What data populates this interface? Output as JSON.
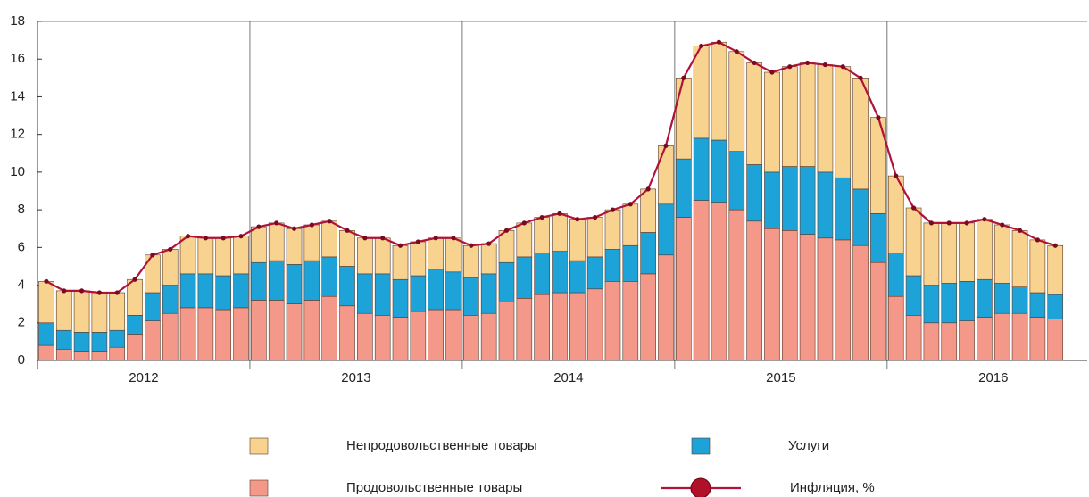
{
  "chart_data": {
    "type": "bar",
    "stacked": true,
    "categories": [
      null,
      null,
      null,
      null,
      null,
      null,
      null,
      null,
      null,
      null,
      null,
      null,
      null,
      null,
      null,
      null,
      null,
      null,
      null,
      null,
      null,
      null,
      null,
      null,
      null,
      null,
      null,
      null,
      null,
      null,
      null,
      null,
      null,
      null,
      null,
      null,
      null,
      null,
      null,
      null,
      null,
      null,
      null,
      null,
      null,
      null,
      null,
      null,
      null,
      null,
      null,
      null,
      null,
      null,
      null,
      null,
      null,
      null
    ],
    "year_labels": [
      "2012",
      "2013",
      "2014",
      "2015",
      "2016"
    ],
    "ylim": [
      0,
      18
    ],
    "yticks": [
      0,
      2,
      4,
      6,
      8,
      10,
      12,
      14,
      16,
      18
    ],
    "series": [
      {
        "name": "Продовольственные товары",
        "color": "#f4998a",
        "values": [
          0.8,
          0.6,
          0.5,
          0.5,
          0.7,
          1.4,
          2.1,
          2.5,
          2.8,
          2.8,
          2.7,
          2.8,
          3.2,
          3.2,
          3.0,
          3.2,
          3.4,
          2.9,
          2.5,
          2.4,
          2.3,
          2.6,
          2.7,
          2.7,
          2.4,
          2.5,
          3.1,
          3.3,
          3.5,
          3.6,
          3.6,
          3.8,
          4.2,
          4.2,
          4.6,
          5.6,
          7.6,
          8.5,
          8.4,
          8.0,
          7.4,
          7.0,
          6.9,
          6.7,
          6.5,
          6.4,
          6.1,
          5.2,
          3.4,
          2.4,
          2.0,
          2.0,
          2.1,
          2.3,
          2.5,
          2.5,
          2.3,
          2.2
        ]
      },
      {
        "name": "Услуги",
        "color": "#1ea3d8",
        "values": [
          1.2,
          1.0,
          1.0,
          1.0,
          0.9,
          1.0,
          1.5,
          1.5,
          1.8,
          1.8,
          1.8,
          1.8,
          2.0,
          2.1,
          2.1,
          2.1,
          2.1,
          2.1,
          2.1,
          2.2,
          2.0,
          1.9,
          2.1,
          2.0,
          2.0,
          2.1,
          2.1,
          2.2,
          2.2,
          2.2,
          1.7,
          1.7,
          1.7,
          1.9,
          2.2,
          2.7,
          3.1,
          3.3,
          3.3,
          3.1,
          3.0,
          3.0,
          3.4,
          3.6,
          3.5,
          3.3,
          3.0,
          2.6,
          2.3,
          2.1,
          2.0,
          2.1,
          2.1,
          2.0,
          1.6,
          1.4,
          1.3,
          1.3
        ]
      },
      {
        "name": "Непродовольственные товары",
        "color": "#f8d38f",
        "values": [
          2.2,
          2.1,
          2.2,
          2.1,
          2.0,
          1.9,
          2.0,
          1.9,
          2.0,
          1.9,
          2.0,
          2.0,
          1.9,
          2.0,
          1.9,
          1.9,
          1.9,
          1.9,
          1.9,
          1.9,
          1.8,
          1.8,
          1.7,
          1.8,
          1.7,
          1.6,
          1.7,
          1.8,
          1.9,
          2.0,
          2.2,
          2.1,
          2.1,
          2.2,
          2.3,
          3.1,
          4.3,
          4.9,
          5.2,
          5.3,
          5.4,
          5.3,
          5.3,
          5.5,
          5.7,
          5.9,
          5.9,
          5.1,
          4.1,
          3.6,
          3.3,
          3.2,
          3.1,
          3.2,
          3.1,
          3.0,
          2.8,
          2.6
        ]
      },
      {
        "name": "Инфляция, %",
        "type": "line",
        "color": "#b0123a",
        "values": [
          4.2,
          3.7,
          3.7,
          3.6,
          3.6,
          4.3,
          5.6,
          5.9,
          6.6,
          6.5,
          6.5,
          6.6,
          7.1,
          7.3,
          7.0,
          7.2,
          7.4,
          6.9,
          6.5,
          6.5,
          6.1,
          6.3,
          6.5,
          6.5,
          6.1,
          6.2,
          6.9,
          7.3,
          7.6,
          7.8,
          7.5,
          7.6,
          8.0,
          8.3,
          9.1,
          11.4,
          15.0,
          16.7,
          16.9,
          16.4,
          15.8,
          15.3,
          15.6,
          15.8,
          15.7,
          15.6,
          15.0,
          12.9,
          9.8,
          8.1,
          7.3,
          7.3,
          7.3,
          7.5,
          7.2,
          6.9,
          6.4,
          6.1
        ]
      }
    ]
  }
}
